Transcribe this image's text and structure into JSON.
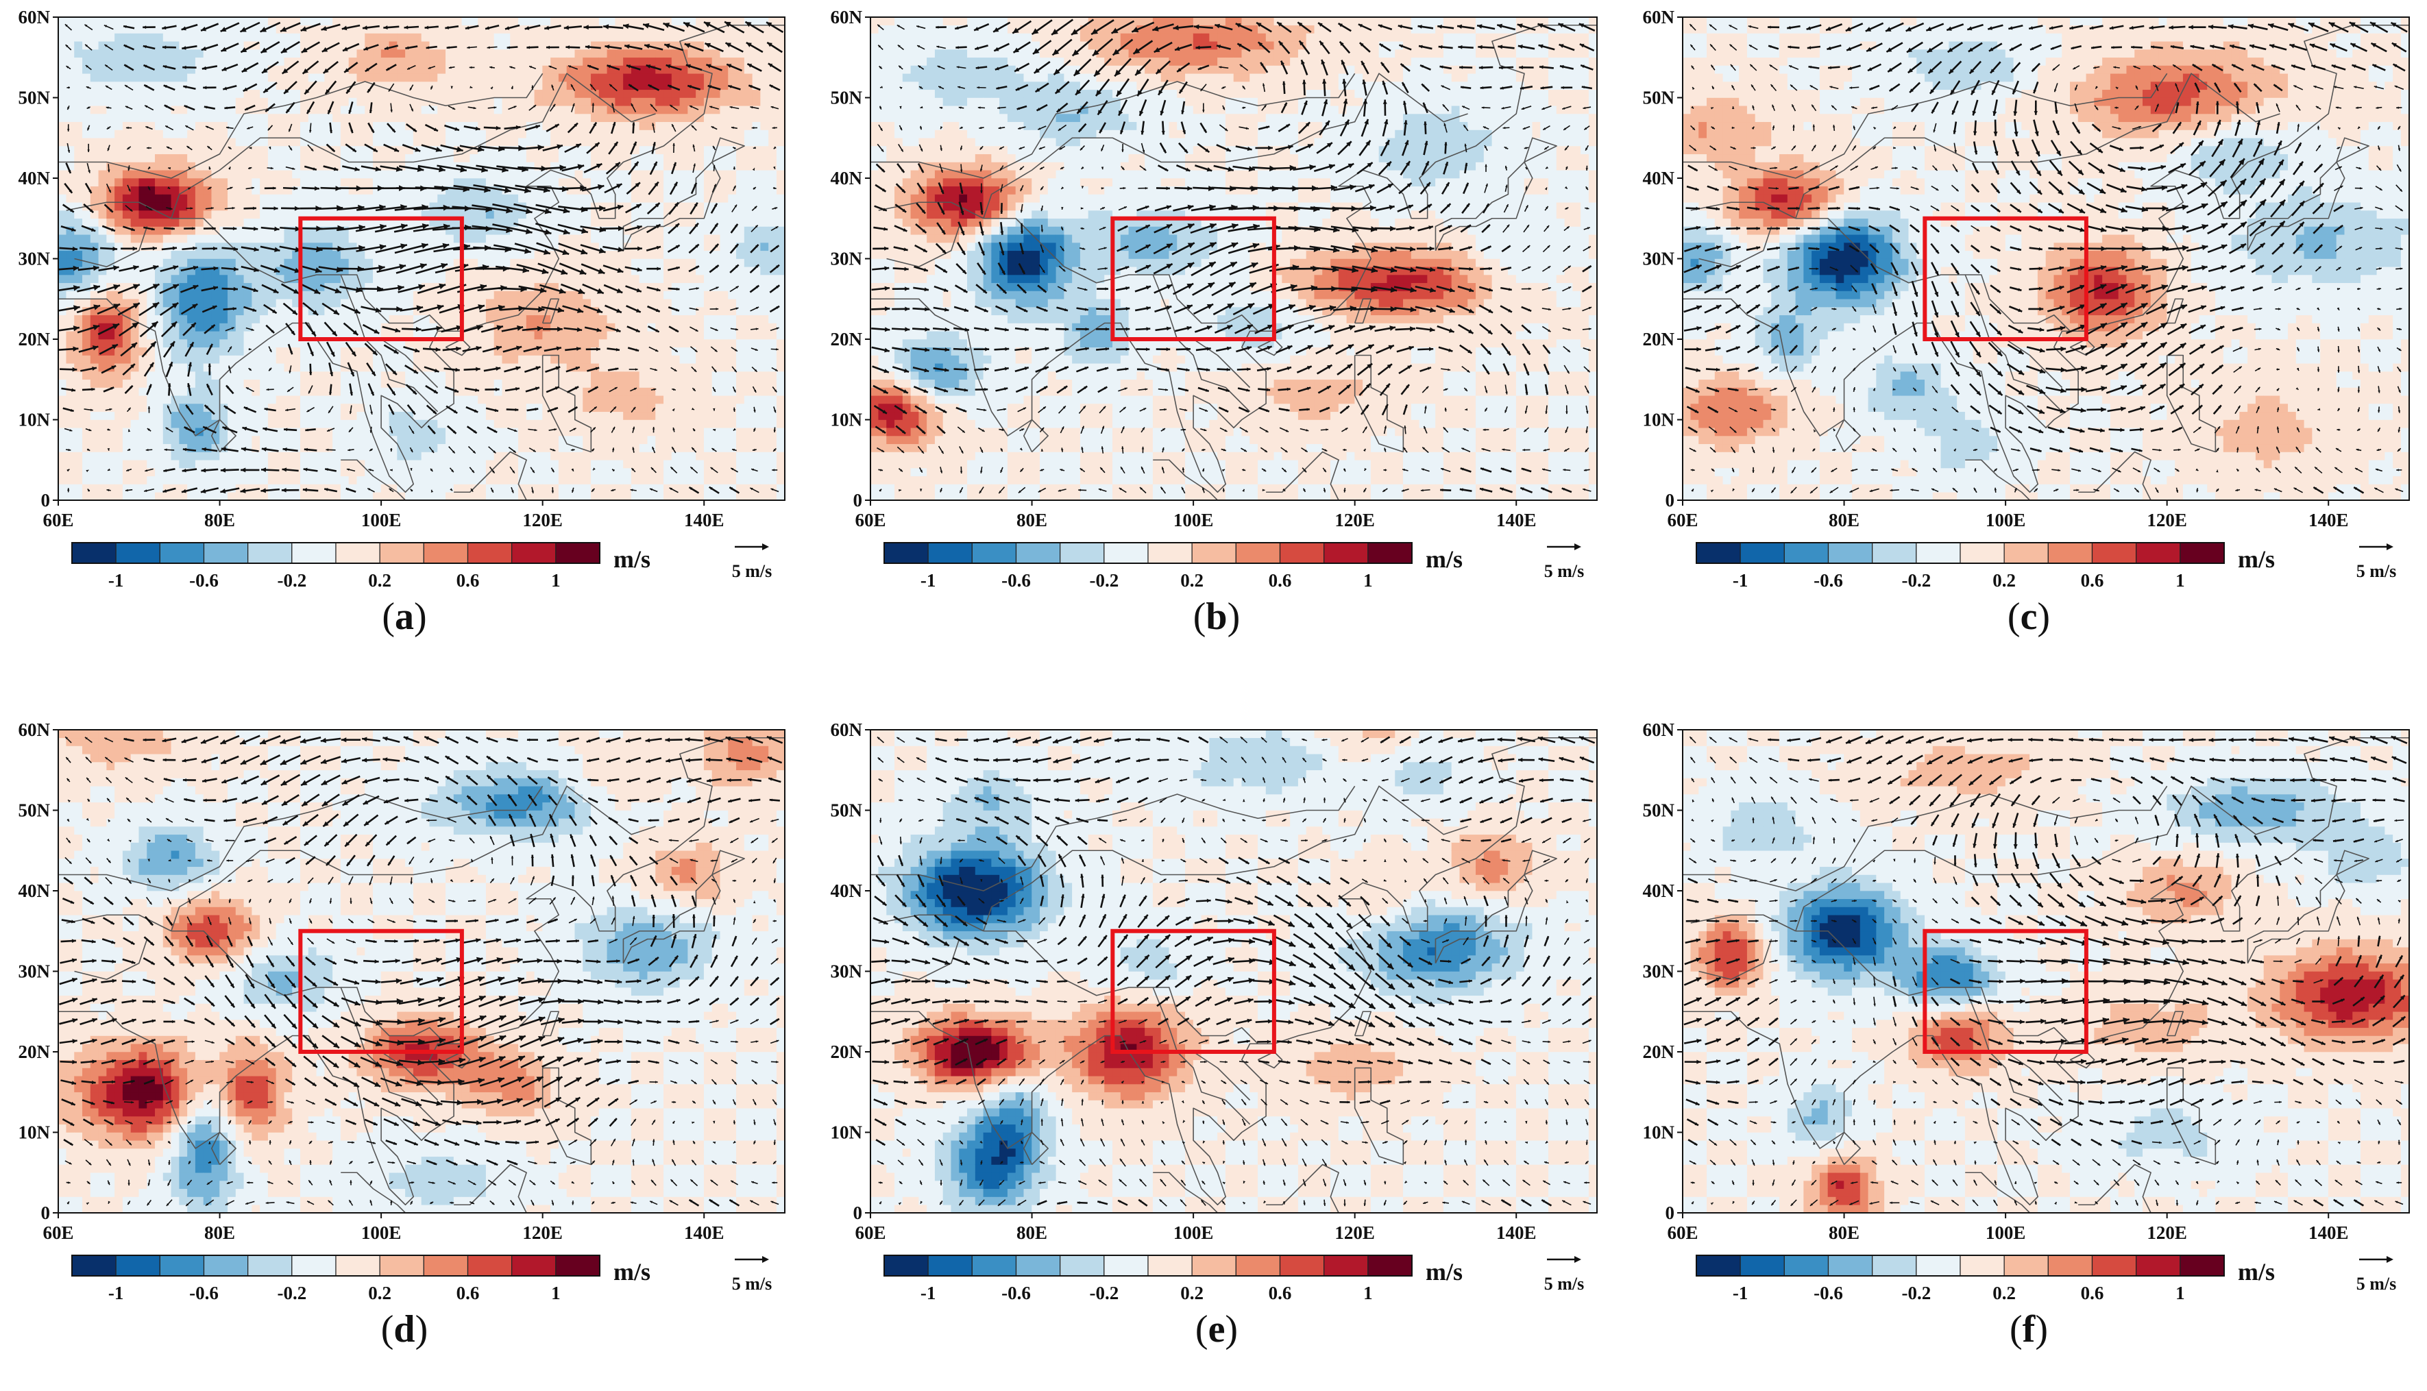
{
  "figure": {
    "description_units": "m/s",
    "vector_reference": "5 m/s",
    "x_ticks": [
      "60E",
      "80E",
      "100E",
      "120E",
      "140E"
    ],
    "y_ticks": [
      "0",
      "10N",
      "20N",
      "30N",
      "40N",
      "50N",
      "60N"
    ],
    "colorbar_ticks": [
      "-1",
      "-0.6",
      "-0.2",
      "0.2",
      "0.6",
      "1"
    ],
    "colorbar_colors": [
      "#08306b",
      "#1166aa",
      "#3a8fc4",
      "#7ab6d9",
      "#bcdaea",
      "#eaf3f8",
      "#fbe8dc",
      "#f6bda1",
      "#eb8a6b",
      "#d64b40",
      "#b2182b",
      "#67001f"
    ],
    "region_box": {
      "lon_min": 90,
      "lon_max": 110,
      "lat_min": 20,
      "lat_max": 35
    },
    "region_box_color": "#e8141b"
  },
  "panels": [
    {
      "id": "a",
      "label": "a",
      "anoms": [
        [
          72,
          37,
          5,
          3,
          1.15
        ],
        [
          66,
          21,
          3,
          4,
          0.85
        ],
        [
          62,
          30,
          4,
          4,
          -0.7
        ],
        [
          78,
          25,
          4,
          5,
          -0.8
        ],
        [
          77,
          9,
          3,
          3,
          -0.6
        ],
        [
          92,
          29,
          5,
          4,
          -0.5
        ],
        [
          133,
          52,
          8,
          3,
          0.9
        ],
        [
          148,
          31,
          3,
          3,
          -0.4
        ],
        [
          102,
          55,
          5,
          3,
          0.4
        ],
        [
          70,
          55,
          7,
          3,
          -0.35
        ],
        [
          120,
          22,
          6,
          4,
          0.4
        ],
        [
          130,
          13,
          5,
          3,
          0.3
        ],
        [
          112,
          36,
          5,
          3,
          -0.4
        ],
        [
          104,
          8,
          4,
          3,
          -0.3
        ]
      ],
      "flow": [
        [
          60,
          15,
          25,
          0,
          0,
          0.35
        ],
        [
          82,
          18,
          16,
          -1,
          -0.15,
          0.4
        ],
        [
          70,
          32,
          14,
          1,
          0,
          0.3
        ],
        [
          115,
          32,
          12,
          -1,
          0.2,
          0.3
        ],
        [
          120,
          50,
          20,
          1,
          0,
          0.3
        ],
        [
          95,
          42,
          14,
          1,
          0.2,
          0.3
        ]
      ]
    },
    {
      "id": "b",
      "label": "b",
      "anoms": [
        [
          72,
          37,
          5,
          3,
          1.05
        ],
        [
          79,
          30,
          4,
          4,
          -1.15
        ],
        [
          63,
          11,
          4,
          3,
          0.95
        ],
        [
          68,
          16,
          4,
          3,
          -0.7
        ],
        [
          88,
          21,
          3,
          3,
          -0.55
        ],
        [
          95,
          32,
          6,
          3,
          -0.5
        ],
        [
          125,
          27,
          9,
          3,
          0.85
        ],
        [
          108,
          22,
          5,
          3,
          -0.35
        ],
        [
          85,
          48,
          6,
          3,
          -0.4
        ],
        [
          72,
          53,
          7,
          3,
          -0.3
        ],
        [
          100,
          57,
          10,
          3,
          0.6
        ],
        [
          130,
          44,
          6,
          4,
          -0.35
        ],
        [
          115,
          13,
          6,
          3,
          0.3
        ],
        [
          140,
          30,
          4,
          3,
          -0.3
        ]
      ],
      "flow": [
        [
          60,
          15,
          25,
          0,
          0,
          0.35
        ],
        [
          80,
          25,
          14,
          1,
          0,
          0.35
        ],
        [
          110,
          28,
          12,
          -1,
          0,
          0.3
        ],
        [
          105,
          50,
          22,
          1,
          0,
          0.25
        ],
        [
          130,
          15,
          12,
          -1,
          0,
          0.3
        ]
      ]
    },
    {
      "id": "c",
      "label": "c",
      "anoms": [
        [
          73,
          37,
          5,
          3,
          0.9
        ],
        [
          80,
          30,
          5,
          4,
          -1.2
        ],
        [
          62,
          30,
          3,
          3,
          -0.6
        ],
        [
          73,
          20,
          3,
          3,
          -0.5
        ],
        [
          66,
          11,
          5,
          3,
          0.6
        ],
        [
          88,
          14,
          4,
          3,
          -0.45
        ],
        [
          112,
          26,
          5,
          4,
          0.85
        ],
        [
          128,
          44,
          6,
          4,
          -0.45
        ],
        [
          140,
          32,
          8,
          4,
          -0.45
        ],
        [
          122,
          50,
          9,
          4,
          0.75
        ],
        [
          95,
          54,
          6,
          3,
          -0.35
        ],
        [
          132,
          9,
          6,
          4,
          0.3
        ],
        [
          64,
          46,
          5,
          3,
          0.4
        ],
        [
          95,
          7,
          4,
          3,
          -0.3
        ]
      ],
      "flow": [
        [
          62,
          25,
          26,
          0,
          0,
          0.35
        ],
        [
          82,
          32,
          12,
          -1,
          0.1,
          0.3
        ],
        [
          138,
          32,
          13,
          -1,
          0,
          0.3
        ],
        [
          118,
          50,
          20,
          1,
          0,
          0.3
        ],
        [
          105,
          20,
          14,
          1,
          0,
          0.3
        ]
      ]
    },
    {
      "id": "d",
      "label": "d",
      "anoms": [
        [
          71,
          15,
          6,
          4,
          1.15
        ],
        [
          78,
          9,
          3,
          6,
          -0.85
        ],
        [
          84,
          15,
          3,
          4,
          0.7
        ],
        [
          79,
          35,
          4,
          3,
          0.75
        ],
        [
          74,
          44,
          4,
          3,
          -0.6
        ],
        [
          88,
          29,
          5,
          3,
          -0.45
        ],
        [
          105,
          20,
          5,
          3,
          0.85
        ],
        [
          116,
          16,
          4,
          3,
          0.5
        ],
        [
          118,
          51,
          8,
          3,
          -0.7
        ],
        [
          133,
          33,
          6,
          4,
          -0.55
        ],
        [
          138,
          42,
          4,
          3,
          0.45
        ],
        [
          145,
          57,
          4,
          3,
          0.5
        ],
        [
          128,
          53,
          4,
          3,
          0.35
        ],
        [
          108,
          4,
          6,
          3,
          -0.3
        ],
        [
          68,
          59,
          6,
          3,
          0.35
        ]
      ],
      "flow": [
        [
          60,
          15,
          30,
          0,
          0,
          0.35
        ],
        [
          65,
          25,
          18,
          0,
          0,
          0.3
        ],
        [
          105,
          35,
          20,
          1,
          0,
          0.3
        ],
        [
          132,
          33,
          10,
          1,
          0,
          0.3
        ],
        [
          110,
          52,
          25,
          0,
          0,
          0.35
        ]
      ]
    },
    {
      "id": "e",
      "label": "e",
      "anoms": [
        [
          73,
          40,
          6,
          4,
          -1.25
        ],
        [
          73,
          20,
          5,
          3,
          1.25
        ],
        [
          75,
          6,
          4,
          4,
          -0.9
        ],
        [
          78,
          12,
          3,
          4,
          -0.55
        ],
        [
          92,
          20,
          5,
          4,
          1.0
        ],
        [
          95,
          31,
          4,
          3,
          -0.3
        ],
        [
          130,
          33,
          7,
          4,
          -0.8
        ],
        [
          137,
          43,
          4,
          3,
          0.5
        ],
        [
          124,
          38,
          4,
          3,
          0.3
        ],
        [
          128,
          55,
          4,
          3,
          -0.35
        ],
        [
          108,
          56,
          8,
          3,
          -0.35
        ],
        [
          123,
          59,
          5,
          3,
          0.3
        ],
        [
          120,
          18,
          6,
          3,
          0.3
        ],
        [
          75,
          51,
          4,
          3,
          -0.4
        ]
      ],
      "flow": [
        [
          60,
          15,
          28,
          0,
          0,
          0.35
        ],
        [
          75,
          40,
          12,
          1,
          0,
          0.35
        ],
        [
          130,
          33,
          12,
          1,
          0,
          0.3
        ],
        [
          105,
          50,
          25,
          0,
          0,
          0.3
        ],
        [
          105,
          25,
          15,
          -1,
          0,
          0.3
        ]
      ]
    },
    {
      "id": "f",
      "label": "f",
      "anoms": [
        [
          80,
          35,
          5,
          4,
          -1.15
        ],
        [
          66,
          32,
          3,
          3,
          0.85
        ],
        [
          93,
          29,
          4,
          3,
          -0.85
        ],
        [
          94,
          22,
          4,
          3,
          0.8
        ],
        [
          80,
          3,
          3,
          3,
          0.8
        ],
        [
          77,
          12,
          3,
          3,
          -0.45
        ],
        [
          143,
          27,
          7,
          4,
          0.95
        ],
        [
          131,
          50,
          8,
          3,
          -0.55
        ],
        [
          122,
          40,
          5,
          3,
          0.45
        ],
        [
          70,
          48,
          5,
          3,
          -0.35
        ],
        [
          95,
          55,
          8,
          3,
          0.3
        ],
        [
          118,
          23,
          6,
          3,
          0.35
        ],
        [
          120,
          10,
          6,
          3,
          -0.3
        ],
        [
          145,
          44,
          4,
          3,
          -0.35
        ]
      ],
      "flow": [
        [
          60,
          15,
          28,
          0,
          0,
          0.35
        ],
        [
          80,
          35,
          12,
          -1,
          0,
          0.35
        ],
        [
          140,
          30,
          12,
          1,
          0,
          0.3
        ],
        [
          115,
          45,
          18,
          1,
          0,
          0.3
        ],
        [
          100,
          55,
          20,
          0,
          0,
          0.25
        ]
      ]
    }
  ]
}
